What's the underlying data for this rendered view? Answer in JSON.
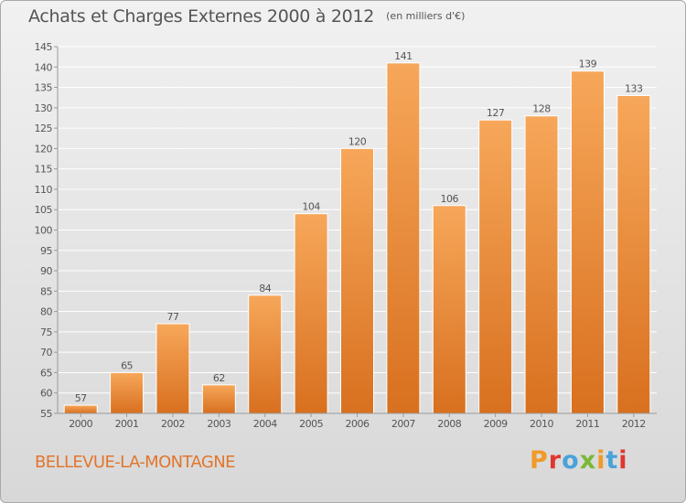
{
  "header": {
    "title": "Achats et Charges Externes 2000 à 2012",
    "unit": "(en milliers d'€)"
  },
  "footer": {
    "commune": "BELLEVUE-LA-MONTAGNE",
    "logo_text": "Proxiti",
    "logo_colors": [
      "#f19a27",
      "#e1362e",
      "#4aa2d9",
      "#7ab839",
      "#f19a27",
      "#4aa2d9",
      "#e1362e"
    ]
  },
  "colors": {
    "bar_light": "#f7a75a",
    "bar_dark": "#d8701f",
    "axis": "#999999",
    "grid": "#ffffff",
    "text": "#555555",
    "accent": "#e2762d"
  },
  "chart_data": {
    "type": "bar",
    "title": "Achats et Charges Externes 2000 à 2012",
    "subtitle": "(en milliers d'€)",
    "xlabel": "",
    "ylabel": "",
    "categories": [
      "2000",
      "2001",
      "2002",
      "2003",
      "2004",
      "2005",
      "2006",
      "2007",
      "2008",
      "2009",
      "2010",
      "2011",
      "2012"
    ],
    "values": [
      57,
      65,
      77,
      62,
      84,
      104,
      120,
      141,
      106,
      127,
      128,
      139,
      133
    ],
    "ylim": [
      55,
      145
    ],
    "yticks": [
      55,
      60,
      65,
      70,
      75,
      80,
      85,
      90,
      95,
      100,
      105,
      110,
      115,
      120,
      125,
      130,
      135,
      140,
      145
    ],
    "grid": true,
    "legend": "none"
  }
}
